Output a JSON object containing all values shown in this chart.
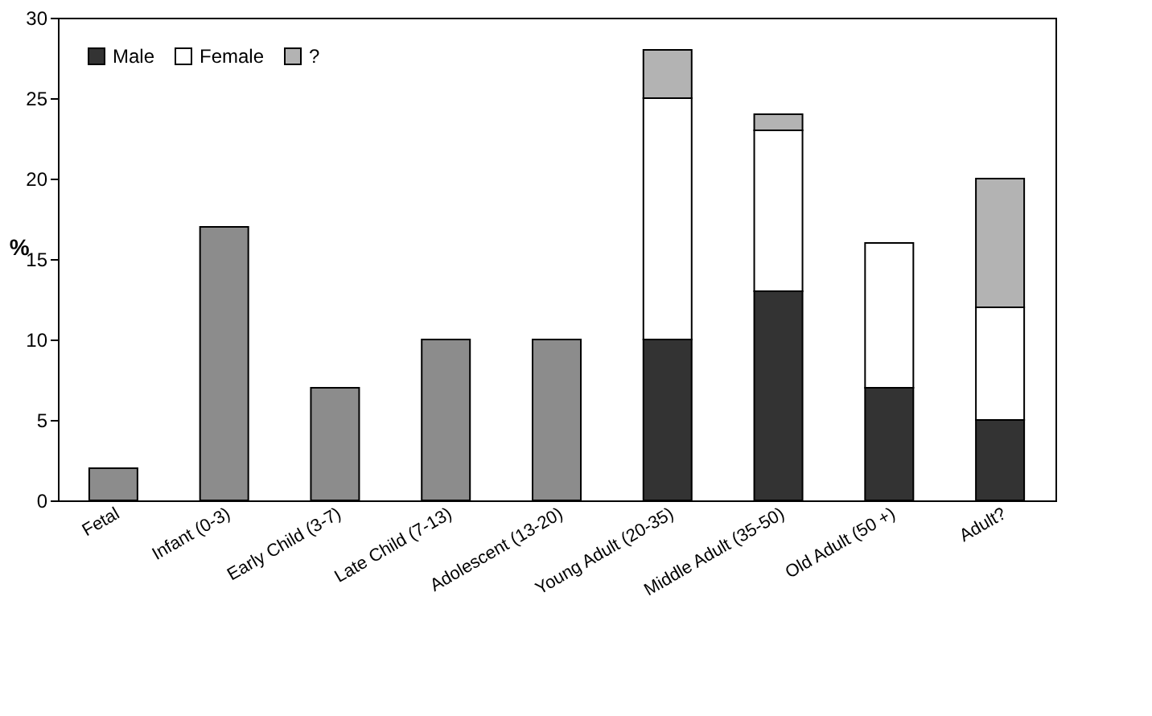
{
  "chart_data": {
    "type": "bar",
    "stacked": true,
    "ylabel": "%",
    "categories": [
      "Fetal",
      "Infant (0-3)",
      "Early Child (3-7)",
      "Late Child (7-13)",
      "Adolescent (13-20)",
      "Young Adult (20-35)",
      "Middle Adult (35-50)",
      "Old Adult (50 +)",
      "Adult?"
    ],
    "series": [
      {
        "color": "#8c8c8c",
        "values": [
          2,
          17,
          7,
          10,
          10,
          null,
          null,
          null,
          null
        ]
      },
      {
        "name": "Male",
        "color": "#333333",
        "values": [
          null,
          null,
          null,
          null,
          null,
          10,
          13,
          7,
          5
        ]
      },
      {
        "name": "Female",
        "color": "#ffffff",
        "values": [
          null,
          null,
          null,
          null,
          null,
          15,
          10,
          9,
          7
        ]
      },
      {
        "name": "?",
        "color": "#b3b3b3",
        "values": [
          null,
          null,
          null,
          null,
          null,
          3,
          1,
          null,
          8
        ]
      }
    ],
    "ylim": [
      0,
      30
    ],
    "yticks": [
      0,
      5,
      10,
      15,
      20,
      25,
      30
    ],
    "grid": false,
    "legend": "top left"
  }
}
